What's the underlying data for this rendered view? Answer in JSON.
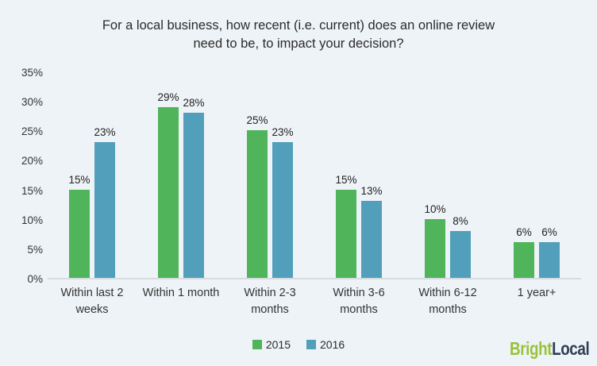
{
  "title_lines": [
    "For a local business, how recent (i.e. current) does an online review",
    "need to be, to impact your decision?"
  ],
  "chart_data": {
    "type": "bar",
    "title": "For a local business, how recent (i.e. current) does an online review need to be, to impact your decision?",
    "categories": [
      "Within last 2 weeks",
      "Within 1 month",
      "Within 2-3 months",
      "Within 3-6 months",
      "Within 6-12 months",
      "1 year+"
    ],
    "series": [
      {
        "name": "2015",
        "color": "#50b45a",
        "values": [
          15,
          29,
          25,
          15,
          10,
          6
        ]
      },
      {
        "name": "2016",
        "color": "#529fbc",
        "values": [
          23,
          28,
          23,
          13,
          8,
          6
        ]
      }
    ],
    "value_suffix": "%",
    "ylim": [
      0,
      35
    ],
    "y_tick_step": 5,
    "y_tick_labels": [
      "0%",
      "5%",
      "10%",
      "15%",
      "20%",
      "25%",
      "30%",
      "35%"
    ],
    "grid": false,
    "legend_position": "bottom-center"
  },
  "legend": {
    "items": [
      {
        "label": "2015",
        "color": "#50b45a"
      },
      {
        "label": "2016",
        "color": "#529fbc"
      }
    ]
  },
  "branding": {
    "logo_text_1": "Bright",
    "logo_text_2": "Local",
    "logo_color_1": "#98c13d",
    "logo_color_2": "#2e4053"
  },
  "colors": {
    "background": "#eef3f7",
    "axis_line": "#d6dbdf",
    "text": "#2b2b2b"
  }
}
